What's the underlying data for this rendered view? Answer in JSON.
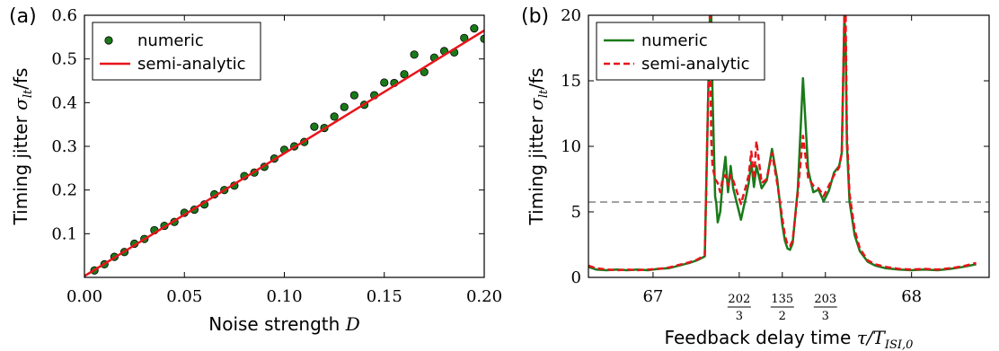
{
  "chart_data": [
    {
      "panel_label": "(a)",
      "type": "scatter",
      "xlabel_prefix": "Noise strength ",
      "xlabel_var": "D",
      "ylabel_prefix": "Timing jitter ",
      "ylabel_var": "σ",
      "ylabel_sub": "lt",
      "ylabel_unit": "/fs",
      "xlim": [
        0.0,
        0.2
      ],
      "ylim": [
        0.0,
        0.6
      ],
      "x_ticks": [
        0.0,
        0.05,
        0.1,
        0.15,
        0.2
      ],
      "x_tick_labels": [
        "0.00",
        "0.05",
        "0.10",
        "0.15",
        "0.20"
      ],
      "y_ticks": [
        0.1,
        0.2,
        0.3,
        0.4,
        0.5,
        0.6
      ],
      "y_tick_labels": [
        "0.1",
        "0.2",
        "0.3",
        "0.4",
        "0.5",
        "0.6"
      ],
      "grid": false,
      "legend_position": "top-left",
      "series": [
        {
          "name": "numeric",
          "kind": "markers",
          "color": "#1a7a1a",
          "x": [
            0.005,
            0.01,
            0.015,
            0.02,
            0.025,
            0.03,
            0.035,
            0.04,
            0.045,
            0.05,
            0.055,
            0.06,
            0.065,
            0.07,
            0.075,
            0.08,
            0.085,
            0.09,
            0.095,
            0.1,
            0.105,
            0.11,
            0.115,
            0.12,
            0.125,
            0.13,
            0.135,
            0.14,
            0.145,
            0.15,
            0.155,
            0.16,
            0.165,
            0.17,
            0.175,
            0.18,
            0.185,
            0.19,
            0.195,
            0.2
          ],
          "y": [
            0.016,
            0.03,
            0.047,
            0.058,
            0.077,
            0.088,
            0.108,
            0.118,
            0.127,
            0.148,
            0.155,
            0.167,
            0.19,
            0.2,
            0.21,
            0.232,
            0.24,
            0.253,
            0.272,
            0.292,
            0.3,
            0.31,
            0.345,
            0.342,
            0.368,
            0.39,
            0.417,
            0.395,
            0.417,
            0.446,
            0.445,
            0.465,
            0.51,
            0.47,
            0.503,
            0.518,
            0.515,
            0.548,
            0.57,
            0.546
          ]
        },
        {
          "name": "semi-analytic",
          "kind": "line",
          "color": "#e8141a",
          "x": [
            0.0,
            0.2
          ],
          "y": [
            0.003,
            0.565
          ]
        }
      ]
    },
    {
      "panel_label": "(b)",
      "type": "line",
      "xlabel_prefix": "Feedback delay time ",
      "xlabel_var": "τ/T",
      "xlabel_sub": "ISI,0",
      "ylabel_prefix": "Timing jitter ",
      "ylabel_var": "σ",
      "ylabel_sub": "lt",
      "ylabel_unit": "/fs",
      "xlim": [
        66.75,
        68.3
      ],
      "ylim": [
        0,
        20
      ],
      "x_ticks": [
        67.0,
        67.3333,
        67.5,
        67.6667,
        68.0
      ],
      "x_tick_labels": [
        {
          "kind": "plain",
          "text": "67"
        },
        {
          "kind": "frac",
          "num": "202",
          "den": "3"
        },
        {
          "kind": "frac",
          "num": "135",
          "den": "2"
        },
        {
          "kind": "frac",
          "num": "203",
          "den": "3"
        },
        {
          "kind": "plain",
          "text": "68"
        }
      ],
      "y_ticks": [
        0,
        5,
        10,
        15,
        20
      ],
      "y_tick_labels": [
        "0",
        "5",
        "10",
        "15",
        "20"
      ],
      "reference_line": {
        "y": 5.75,
        "style": "dashed",
        "color": "#777777"
      },
      "grid": false,
      "legend_position": "top-left",
      "series": [
        {
          "name": "numeric",
          "style": "solid",
          "color": "#1a7a1a",
          "x": [
            66.75,
            66.78,
            66.82,
            66.86,
            66.9,
            66.94,
            66.98,
            67.02,
            67.06,
            67.1,
            67.14,
            67.17,
            67.2,
            67.22,
            67.225,
            67.23,
            67.24,
            67.245,
            67.25,
            67.26,
            67.27,
            67.28,
            67.29,
            67.3,
            67.31,
            67.32,
            67.33,
            67.34,
            67.35,
            67.36,
            67.37,
            67.38,
            67.39,
            67.4,
            67.42,
            67.44,
            67.46,
            67.48,
            67.5,
            67.51,
            67.52,
            67.53,
            67.54,
            67.56,
            67.58,
            67.6,
            67.62,
            67.64,
            67.66,
            67.68,
            67.7,
            67.72,
            67.73,
            67.74,
            67.745,
            67.75,
            67.76,
            67.78,
            67.8,
            67.83,
            67.86,
            67.9,
            67.95,
            68.0,
            68.05,
            68.1,
            68.15,
            68.2,
            68.25
          ],
          "y": [
            0.8,
            0.6,
            0.55,
            0.6,
            0.55,
            0.6,
            0.55,
            0.65,
            0.7,
            0.9,
            1.1,
            1.3,
            1.6,
            20,
            20,
            14,
            6.2,
            5.6,
            4.2,
            5,
            7.5,
            9.2,
            6.5,
            8.5,
            6.8,
            6.0,
            5.2,
            4.4,
            5.3,
            6.2,
            7.2,
            8.8,
            6.9,
            8.5,
            6.8,
            7.4,
            9.8,
            7.5,
            4.0,
            2.8,
            2.2,
            2.1,
            2.6,
            6.8,
            15.2,
            8.2,
            6.5,
            6.7,
            5.8,
            6.6,
            8.0,
            8.5,
            9.5,
            20,
            18,
            10.2,
            5.8,
            3.2,
            2.0,
            1.2,
            0.9,
            0.7,
            0.6,
            0.55,
            0.6,
            0.55,
            0.65,
            0.8,
            1.0
          ]
        },
        {
          "name": "semi-analytic",
          "style": "dashed",
          "color": "#e8141a",
          "x": [
            66.75,
            66.78,
            66.82,
            66.86,
            66.9,
            66.94,
            66.98,
            67.02,
            67.06,
            67.1,
            67.14,
            67.17,
            67.2,
            67.22,
            67.225,
            67.23,
            67.24,
            67.25,
            67.26,
            67.27,
            67.28,
            67.29,
            67.3,
            67.31,
            67.32,
            67.33,
            67.34,
            67.35,
            67.36,
            67.37,
            67.38,
            67.39,
            67.4,
            67.42,
            67.44,
            67.46,
            67.48,
            67.5,
            67.51,
            67.52,
            67.53,
            67.54,
            67.56,
            67.58,
            67.6,
            67.62,
            67.64,
            67.66,
            67.68,
            67.7,
            67.72,
            67.73,
            67.74,
            67.745,
            67.75,
            67.76,
            67.78,
            67.8,
            67.83,
            67.86,
            67.9,
            67.95,
            68.0,
            68.05,
            68.1,
            68.15,
            68.2,
            68.25
          ],
          "y": [
            0.9,
            0.7,
            0.6,
            0.55,
            0.6,
            0.55,
            0.6,
            0.65,
            0.75,
            0.95,
            1.15,
            1.35,
            1.7,
            20,
            10.5,
            8.5,
            7.5,
            7.2,
            6.5,
            7.6,
            7.8,
            7.0,
            7.8,
            7.4,
            6.8,
            6.2,
            5.6,
            6.3,
            7.0,
            7.8,
            9.6,
            7.5,
            10.4,
            7.2,
            7.5,
            9.5,
            7.2,
            4.5,
            3.2,
            2.5,
            2.4,
            2.8,
            6.5,
            10.8,
            7.6,
            7.0,
            6.8,
            6.2,
            7.0,
            7.8,
            8.4,
            9.5,
            20,
            20,
            11.0,
            6.4,
            3.6,
            2.2,
            1.3,
            1.0,
            0.8,
            0.65,
            0.6,
            0.65,
            0.6,
            0.7,
            0.85,
            1.1
          ]
        }
      ]
    }
  ]
}
